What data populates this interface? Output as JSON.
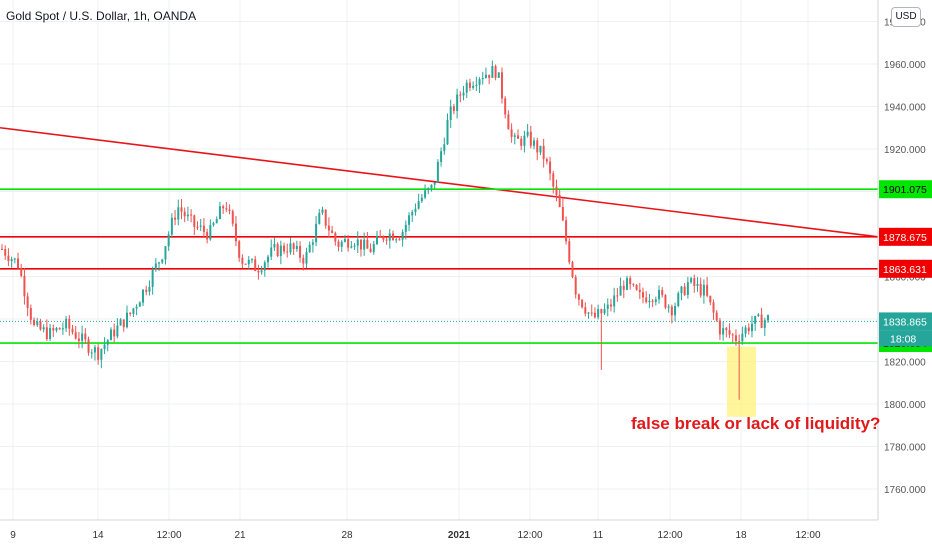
{
  "header": {
    "title": "Gold Spot / U.S. Dollar, 1h, OANDA",
    "currency_button": "USD"
  },
  "annotation": "false break or lack of liquidity?",
  "colors": {
    "up": "#26a69a",
    "down": "#ef5350",
    "support": "#00e600",
    "resistance": "#f00000",
    "highlight": "#fff27a"
  },
  "chart_data": {
    "type": "candlestick",
    "ylim": [
      1745,
      1985
    ],
    "y_ticks": [
      "1760.000",
      "1780.000",
      "1800.000",
      "1820.000",
      "1840.000",
      "1860.000",
      "1880.000",
      "1900.000",
      "1920.000",
      "1940.000",
      "1960.000",
      "1980.000"
    ],
    "x_ticks": [
      "9",
      "14",
      "12:00",
      "21",
      "28",
      "2021",
      "12:00",
      "11",
      "12:00",
      "18",
      "12:00"
    ],
    "horizontal_levels": [
      {
        "label": "1901.075",
        "value": 1901.075,
        "color": "green"
      },
      {
        "label": "1878.675",
        "value": 1878.675,
        "color": "red"
      },
      {
        "label": "1863.631",
        "value": 1863.631,
        "color": "red"
      },
      {
        "label": "1828.694",
        "value": 1828.694,
        "color": "green"
      }
    ],
    "trendline": {
      "from_value": 1930,
      "to_value": 1878.675,
      "color": "red"
    },
    "last_price": {
      "label": "1838.865",
      "value": 1838.865,
      "countdown": "18:08"
    },
    "price_path": [
      1873,
      1866,
      1836,
      1833,
      1837,
      1830,
      1824,
      1834,
      1842,
      1855,
      1870,
      1893,
      1884,
      1880,
      1895,
      1868,
      1864,
      1872,
      1874,
      1868,
      1890,
      1875,
      1878,
      1872,
      1880,
      1880,
      1895,
      1902,
      1935,
      1950,
      1955,
      1957,
      1923,
      1925,
      1916,
      1890,
      1852,
      1840,
      1845,
      1857,
      1850,
      1852,
      1845,
      1857,
      1853,
      1835,
      1831,
      1838,
      1840
    ]
  }
}
